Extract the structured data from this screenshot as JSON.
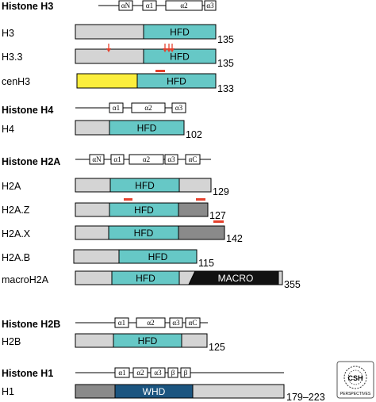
{
  "colors": {
    "gray": "#d4d4d4",
    "teal": "#66c8c6",
    "yellow": "#fbee3d",
    "darkgray": "#8a8a8a",
    "black": "#111111",
    "navy": "#1b5580",
    "red": "#e5402c"
  },
  "sections": [
    {
      "id": "h3",
      "title": "Histone H3",
      "helices": [
        "αN",
        "α1",
        "α2",
        "α3"
      ],
      "proteins": [
        {
          "name": "H3",
          "length": "135",
          "segments": [
            {
              "color": "gray",
              "label": ""
            },
            {
              "color": "teal",
              "label": "HFD"
            }
          ]
        },
        {
          "name": "H3.3",
          "length": "135",
          "segments": [
            {
              "color": "gray",
              "label": ""
            },
            {
              "color": "teal",
              "label": "HFD"
            }
          ]
        },
        {
          "name": "cenH3",
          "length": "133",
          "segments": [
            {
              "color": "yellow",
              "label": ""
            },
            {
              "color": "teal",
              "label": "HFD"
            }
          ]
        }
      ]
    },
    {
      "id": "h4",
      "title": "Histone H4",
      "helices": [
        "α1",
        "α2",
        "α3"
      ],
      "proteins": [
        {
          "name": "H4",
          "length": "102",
          "segments": [
            {
              "color": "gray",
              "label": ""
            },
            {
              "color": "teal",
              "label": "HFD"
            }
          ]
        }
      ]
    },
    {
      "id": "h2a",
      "title": "Histone H2A",
      "helices": [
        "αN",
        "α1",
        "α2",
        "α3",
        "αC"
      ],
      "proteins": [
        {
          "name": "H2A",
          "length": "129",
          "segments": [
            {
              "color": "gray",
              "label": ""
            },
            {
              "color": "teal",
              "label": "HFD"
            },
            {
              "color": "gray",
              "label": ""
            }
          ]
        },
        {
          "name": "H2A.Z",
          "length": "127",
          "segments": [
            {
              "color": "gray",
              "label": ""
            },
            {
              "color": "teal",
              "label": "HFD"
            },
            {
              "color": "darkgray",
              "label": ""
            }
          ]
        },
        {
          "name": "H2A.X",
          "length": "142",
          "segments": [
            {
              "color": "gray",
              "label": ""
            },
            {
              "color": "teal",
              "label": "HFD"
            },
            {
              "color": "darkgray",
              "label": ""
            }
          ]
        },
        {
          "name": "H2A.B",
          "length": "115",
          "segments": [
            {
              "color": "gray",
              "label": ""
            },
            {
              "color": "teal",
              "label": "HFD"
            }
          ]
        },
        {
          "name": "macroH2A",
          "length": "355",
          "segments": [
            {
              "color": "gray",
              "label": ""
            },
            {
              "color": "teal",
              "label": "HFD"
            },
            {
              "color": "gray",
              "label": ""
            },
            {
              "color": "black",
              "label": "MACRO"
            },
            {
              "color": "gray",
              "label": ""
            }
          ]
        }
      ]
    },
    {
      "id": "h2b",
      "title": "Histone H2B",
      "helices": [
        "α1",
        "α2",
        "α3",
        "αC"
      ],
      "proteins": [
        {
          "name": "H2B",
          "length": "125",
          "segments": [
            {
              "color": "gray",
              "label": ""
            },
            {
              "color": "teal",
              "label": "HFD"
            },
            {
              "color": "gray",
              "label": ""
            }
          ]
        }
      ]
    },
    {
      "id": "h1",
      "title": "Histone H1",
      "helices": [
        "α1",
        "α2",
        "α3",
        "β",
        "β"
      ],
      "proteins": [
        {
          "name": "H1",
          "length": "179–223",
          "segments": [
            {
              "color": "darkgray",
              "label": ""
            },
            {
              "color": "navy",
              "label": "WHD"
            },
            {
              "color": "gray",
              "label": ""
            }
          ]
        }
      ]
    }
  ],
  "logo": {
    "text": "CSH",
    "subtext": "PERSPECTIVES"
  }
}
